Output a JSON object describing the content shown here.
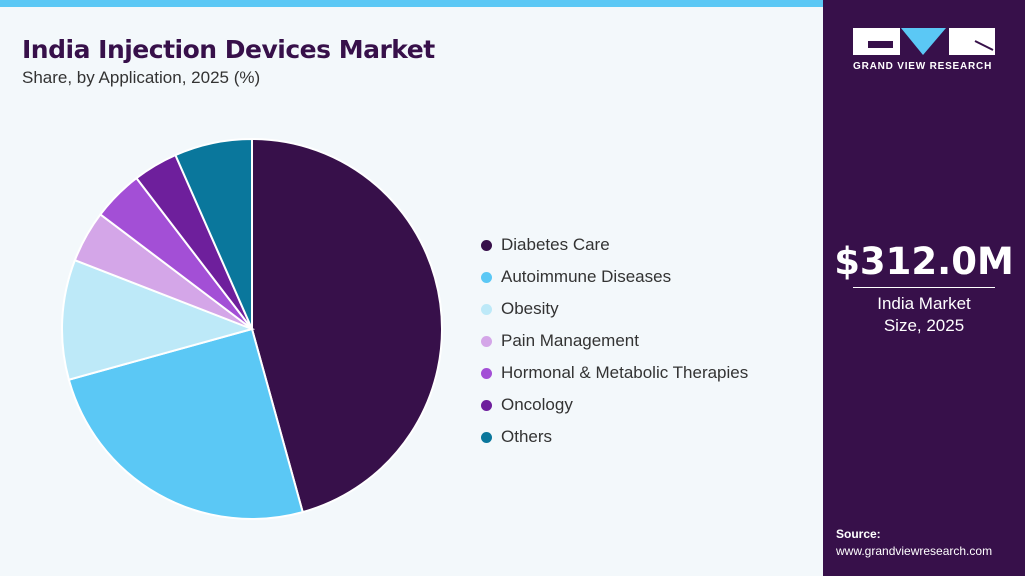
{
  "header": {
    "title": "India Injection Devices Market",
    "subtitle": "Share, by Application, 2025 (%)"
  },
  "chart_data": {
    "type": "pie",
    "title": "India Injection Devices Market",
    "subtitle": "Share, by Application, 2025 (%)",
    "start_angle": "top, clockwise",
    "legend_position": "right",
    "categories": [
      "Diabetes Care",
      "Autoimmune Diseases",
      "Obesity",
      "Pain Management",
      "Hormonal & Metabolic Therapies",
      "Oncology",
      "Others"
    ],
    "values": [
      45.7,
      25.0,
      10.2,
      4.4,
      4.3,
      3.8,
      6.6
    ],
    "colors": [
      "#37104a",
      "#5bc8f5",
      "#bde9f8",
      "#d4a6e8",
      "#a34fd6",
      "#6e1f9c",
      "#0a779c"
    ]
  },
  "sidebar": {
    "logo_text": "GRAND VIEW RESEARCH",
    "market_size": "$312.0M",
    "market_label": "India Market Size, 2025",
    "source_label": "Source:",
    "source_url": "www.grandviewresearch.com"
  }
}
